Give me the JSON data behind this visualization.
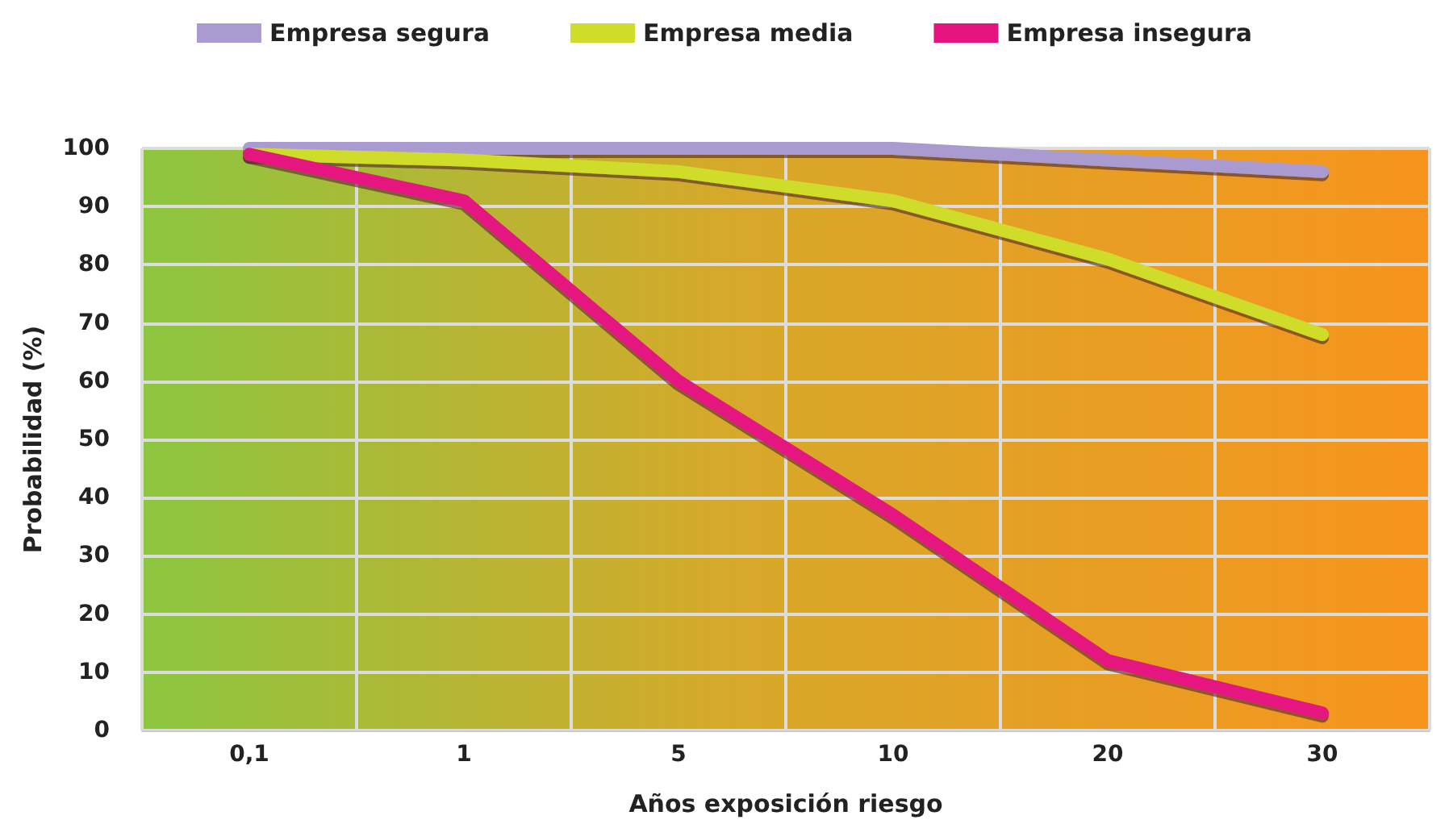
{
  "chart_data": {
    "type": "line",
    "xlabel": "Años exposición riesgo",
    "ylabel": "Probabilidad (%)",
    "categories": [
      "0,1",
      "1",
      "5",
      "10",
      "20",
      "30"
    ],
    "series": [
      {
        "name": "Empresa segura",
        "color": "#a99bd0",
        "values": [
          100,
          100,
          100,
          100,
          98,
          96
        ]
      },
      {
        "name": "Empresa media",
        "color": "#cfdd2a",
        "values": [
          99,
          98,
          96,
          91,
          81,
          68
        ]
      },
      {
        "name": "Empresa insegura",
        "color": "#e5147f",
        "values": [
          99,
          91,
          60,
          37,
          12,
          3
        ]
      }
    ],
    "ylim": [
      0,
      100
    ],
    "yticks": [
      0,
      10,
      20,
      30,
      40,
      50,
      60,
      70,
      80,
      90,
      100
    ],
    "grid": true,
    "legend": "top",
    "marker": "none",
    "line_style": "solid"
  }
}
